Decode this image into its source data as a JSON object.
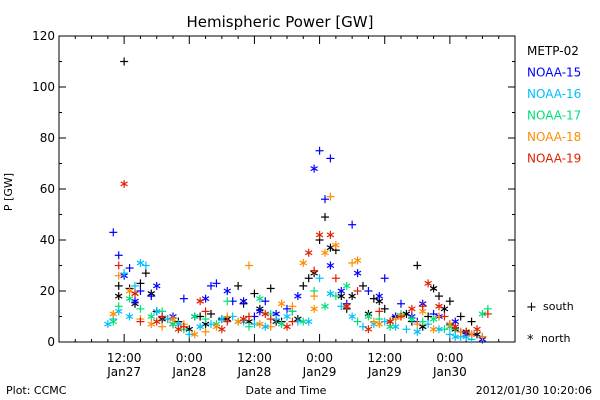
{
  "chart_data": {
    "type": "scatter",
    "title": "Hemispheric Power [GW]",
    "ylabel": "P [GW]",
    "xlabel": "Date and Time",
    "ylim": [
      0,
      120
    ],
    "y_ticks": [
      0,
      20,
      40,
      60,
      80,
      100,
      120
    ],
    "x_range_hours": [
      0,
      84
    ],
    "x_ticks": [
      {
        "hour": 12,
        "line1": "12:00",
        "line2": "Jan27"
      },
      {
        "hour": 24,
        "line1": "0:00",
        "line2": "Jan28"
      },
      {
        "hour": 36,
        "line1": "12:00",
        "line2": "Jan28"
      },
      {
        "hour": 48,
        "line1": "0:00",
        "line2": "Jan29"
      },
      {
        "hour": 60,
        "line1": "12:00",
        "line2": "Jan29"
      },
      {
        "hour": 72,
        "line1": "0:00",
        "line2": "Jan30"
      }
    ],
    "legend_placement": "right",
    "series": [
      {
        "name": "METP-02",
        "color": "#000000",
        "south": [
          [
            11,
            22
          ],
          [
            12,
            110
          ],
          [
            13,
            21
          ],
          [
            15,
            23
          ],
          [
            16,
            27
          ],
          [
            18,
            12
          ],
          [
            20,
            9
          ],
          [
            22,
            8
          ],
          [
            26,
            10
          ],
          [
            28,
            11
          ],
          [
            30,
            9
          ],
          [
            33,
            22
          ],
          [
            34,
            15
          ],
          [
            36,
            19
          ],
          [
            39,
            21
          ],
          [
            41,
            8
          ],
          [
            43,
            12
          ],
          [
            45,
            22
          ],
          [
            46,
            25
          ],
          [
            48,
            40
          ],
          [
            49,
            49
          ],
          [
            51,
            36
          ],
          [
            53,
            13
          ],
          [
            56,
            22
          ],
          [
            58,
            17
          ],
          [
            60,
            13
          ],
          [
            62,
            10
          ],
          [
            65,
            8
          ],
          [
            66,
            30
          ],
          [
            68,
            10
          ],
          [
            70,
            18
          ],
          [
            72,
            16
          ],
          [
            74,
            10
          ],
          [
            76,
            8
          ],
          [
            78,
            2
          ]
        ],
        "north": [
          [
            11,
            18
          ],
          [
            14,
            15
          ],
          [
            17,
            19
          ],
          [
            19,
            9
          ],
          [
            21,
            7
          ],
          [
            24,
            5
          ],
          [
            27,
            7
          ],
          [
            31,
            9
          ],
          [
            35,
            8
          ],
          [
            37,
            13
          ],
          [
            40,
            8
          ],
          [
            44,
            9
          ],
          [
            47,
            27
          ],
          [
            50,
            37
          ],
          [
            52,
            18
          ],
          [
            54,
            18
          ],
          [
            57,
            11
          ],
          [
            59,
            16
          ],
          [
            61,
            8
          ],
          [
            64,
            11
          ],
          [
            67,
            6
          ],
          [
            69,
            21
          ],
          [
            71,
            13
          ],
          [
            73,
            5
          ],
          [
            75,
            4
          ],
          [
            77,
            3
          ]
        ]
      },
      {
        "name": "NOAA-15",
        "color": "#0000ff",
        "south": [
          [
            10,
            43
          ],
          [
            11,
            34
          ],
          [
            13,
            29
          ],
          [
            15,
            20
          ],
          [
            17,
            18
          ],
          [
            19,
            10
          ],
          [
            23,
            17
          ],
          [
            28,
            22
          ],
          [
            29,
            23
          ],
          [
            32,
            16
          ],
          [
            36,
            10
          ],
          [
            38,
            16
          ],
          [
            42,
            13
          ],
          [
            48,
            75
          ],
          [
            49,
            56
          ],
          [
            50,
            72
          ],
          [
            53,
            15
          ],
          [
            54,
            46
          ],
          [
            57,
            20
          ],
          [
            60,
            25
          ],
          [
            63,
            15
          ],
          [
            66,
            8
          ],
          [
            69,
            11
          ],
          [
            72,
            7
          ],
          [
            74,
            4
          ],
          [
            76,
            3
          ]
        ],
        "north": [
          [
            12,
            26
          ],
          [
            14,
            16
          ],
          [
            18,
            22
          ],
          [
            21,
            10
          ],
          [
            25,
            10
          ],
          [
            27,
            17
          ],
          [
            31,
            20
          ],
          [
            34,
            16
          ],
          [
            37,
            12
          ],
          [
            40,
            11
          ],
          [
            44,
            18
          ],
          [
            47,
            68
          ],
          [
            50,
            30
          ],
          [
            52,
            20
          ],
          [
            55,
            27
          ],
          [
            59,
            18
          ],
          [
            62,
            10
          ],
          [
            65,
            10
          ],
          [
            67,
            15
          ],
          [
            70,
            10
          ],
          [
            73,
            8
          ],
          [
            75,
            3
          ],
          [
            78,
            1
          ]
        ]
      },
      {
        "name": "NOAA-16",
        "color": "#00bfff",
        "south": [
          [
            10,
            9
          ],
          [
            12,
            27
          ],
          [
            14,
            22
          ],
          [
            16,
            30
          ],
          [
            20,
            9
          ],
          [
            24,
            3
          ],
          [
            28,
            7
          ],
          [
            32,
            10
          ],
          [
            36,
            7
          ],
          [
            40,
            9
          ],
          [
            44,
            8
          ],
          [
            48,
            25
          ],
          [
            52,
            14
          ],
          [
            56,
            6
          ],
          [
            60,
            8
          ],
          [
            64,
            5
          ],
          [
            68,
            7
          ],
          [
            72,
            3
          ],
          [
            74,
            2
          ],
          [
            76,
            1
          ]
        ],
        "north": [
          [
            9,
            7
          ],
          [
            11,
            12
          ],
          [
            13,
            10
          ],
          [
            15,
            31
          ],
          [
            18,
            12
          ],
          [
            22,
            7
          ],
          [
            26,
            6
          ],
          [
            30,
            9
          ],
          [
            34,
            8
          ],
          [
            38,
            6
          ],
          [
            42,
            10
          ],
          [
            46,
            8
          ],
          [
            50,
            19
          ],
          [
            54,
            10
          ],
          [
            58,
            7
          ],
          [
            62,
            6
          ],
          [
            66,
            4
          ],
          [
            70,
            5
          ],
          [
            73,
            2
          ],
          [
            75,
            2
          ]
        ]
      },
      {
        "name": "NOAA-17",
        "color": "#00e07a",
        "south": [
          [
            11,
            14
          ],
          [
            15,
            13
          ],
          [
            19,
            12
          ],
          [
            23,
            5
          ],
          [
            27,
            9
          ],
          [
            31,
            16
          ],
          [
            35,
            6
          ],
          [
            39,
            11
          ],
          [
            43,
            12
          ],
          [
            47,
            20
          ],
          [
            51,
            18
          ],
          [
            55,
            8
          ],
          [
            59,
            9
          ],
          [
            63,
            11
          ],
          [
            67,
            8
          ],
          [
            71,
            5
          ],
          [
            73,
            5
          ],
          [
            79,
            13
          ]
        ],
        "north": [
          [
            10,
            8
          ],
          [
            13,
            17
          ],
          [
            17,
            10
          ],
          [
            21,
            7
          ],
          [
            25,
            10
          ],
          [
            29,
            7
          ],
          [
            33,
            8
          ],
          [
            37,
            17
          ],
          [
            41,
            7
          ],
          [
            45,
            8
          ],
          [
            49,
            14
          ],
          [
            53,
            22
          ],
          [
            57,
            10
          ],
          [
            61,
            6
          ],
          [
            65,
            9
          ],
          [
            69,
            9
          ],
          [
            72,
            6
          ],
          [
            78,
            11
          ]
        ]
      },
      {
        "name": "NOAA-18",
        "color": "#ff8c00",
        "south": [
          [
            11,
            26
          ],
          [
            15,
            9
          ],
          [
            19,
            6
          ],
          [
            23,
            7
          ],
          [
            27,
            4
          ],
          [
            31,
            10
          ],
          [
            35,
            30
          ],
          [
            39,
            6
          ],
          [
            43,
            14
          ],
          [
            47,
            18
          ],
          [
            50,
            57
          ],
          [
            54,
            31
          ],
          [
            58,
            8
          ],
          [
            62,
            9
          ],
          [
            66,
            7
          ],
          [
            70,
            10
          ],
          [
            74,
            4
          ],
          [
            78,
            2
          ]
        ],
        "north": [
          [
            10,
            11
          ],
          [
            13,
            20
          ],
          [
            17,
            7
          ],
          [
            21,
            9
          ],
          [
            25,
            3
          ],
          [
            29,
            6
          ],
          [
            33,
            8
          ],
          [
            37,
            7
          ],
          [
            41,
            15
          ],
          [
            45,
            31
          ],
          [
            47,
            13
          ],
          [
            49,
            35
          ],
          [
            51,
            38
          ],
          [
            55,
            32
          ],
          [
            59,
            7
          ],
          [
            63,
            10
          ],
          [
            67,
            12
          ],
          [
            69,
            5
          ],
          [
            72,
            7
          ],
          [
            76,
            3
          ]
        ]
      },
      {
        "name": "NOAA-19",
        "color": "#e02000",
        "south": [
          [
            11,
            30
          ],
          [
            15,
            8
          ],
          [
            19,
            10
          ],
          [
            23,
            6
          ],
          [
            27,
            12
          ],
          [
            31,
            8
          ],
          [
            35,
            10
          ],
          [
            39,
            9
          ],
          [
            43,
            8
          ],
          [
            47,
            28
          ],
          [
            51,
            25
          ],
          [
            55,
            20
          ],
          [
            59,
            12
          ],
          [
            63,
            10
          ],
          [
            67,
            14
          ],
          [
            71,
            10
          ],
          [
            75,
            4
          ],
          [
            79,
            11
          ]
        ],
        "north": [
          [
            12,
            62
          ],
          [
            14,
            19
          ],
          [
            18,
            8
          ],
          [
            22,
            5
          ],
          [
            26,
            16
          ],
          [
            30,
            5
          ],
          [
            34,
            9
          ],
          [
            38,
            11
          ],
          [
            42,
            6
          ],
          [
            46,
            35
          ],
          [
            48,
            42
          ],
          [
            50,
            42
          ],
          [
            53,
            14
          ],
          [
            57,
            5
          ],
          [
            61,
            8
          ],
          [
            65,
            13
          ],
          [
            68,
            23
          ],
          [
            70,
            14
          ],
          [
            73,
            6
          ],
          [
            77,
            5
          ]
        ]
      }
    ]
  },
  "legend_names": [
    "METP-02",
    "NOAA-15",
    "NOAA-16",
    "NOAA-17",
    "NOAA-18",
    "NOAA-19"
  ],
  "legend_colors": [
    "#000000",
    "#0000ff",
    "#00bfff",
    "#00e07a",
    "#ff8c00",
    "#e02000"
  ],
  "marker_legend": {
    "south_symbol": "+",
    "south_label": "south",
    "north_symbol": "*",
    "north_label": "north"
  },
  "footer": {
    "left": "Plot: CCMC",
    "center": "Date and Time",
    "right": "2012/01/30 10:20:06"
  }
}
